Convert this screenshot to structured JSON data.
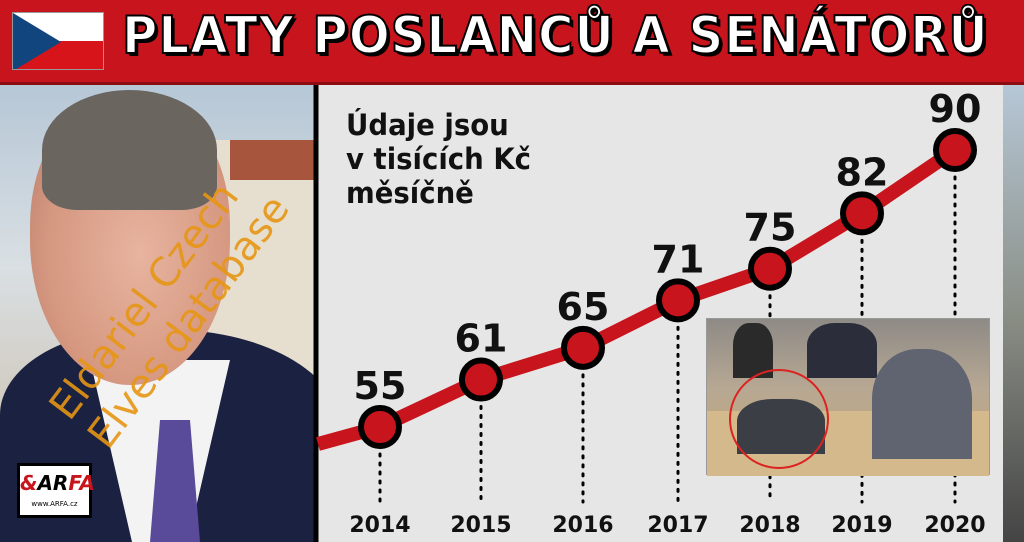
{
  "header": {
    "title": "PLATY POSLANCŮ A SENÁTORŮ",
    "flag": "czech-flag"
  },
  "logo": {
    "mark": "&ARFA",
    "url": "www.ARFA.cz"
  },
  "watermark": "Eldariel Czech Elves database",
  "chart_data": {
    "type": "line",
    "title": "",
    "note": "Údaje jsou\nv tisících Kč\nměsíčně",
    "categories": [
      "2014",
      "2015",
      "2016",
      "2017",
      "2018",
      "2019",
      "2020"
    ],
    "values": [
      55,
      61,
      65,
      71,
      75,
      82,
      90
    ],
    "data_labels": [
      "55",
      "61",
      "65",
      "71",
      "75",
      "82",
      "90"
    ],
    "xlabel": "",
    "ylabel": "",
    "unit": "tisíce Kč měsíčně",
    "grid": false,
    "legend": "none",
    "colors": {
      "line": "#c8141c",
      "marker_fill": "#c8141c",
      "marker_edge": "#000000",
      "background": "#e6e6e6"
    }
  }
}
